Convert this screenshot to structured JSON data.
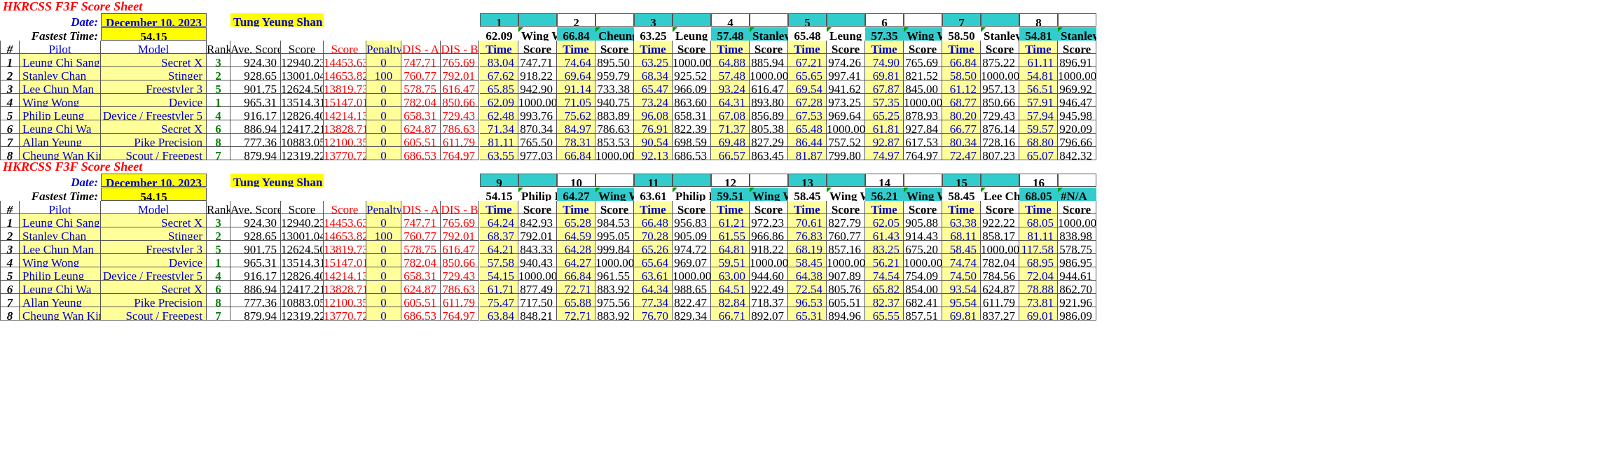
{
  "sheets": [
    {
      "title": "HKRCSS F3F Score Sheet",
      "date_label": "Date:",
      "date": "December 10, 2023",
      "location": "Tung Yeung Shan",
      "fastest_label": "Fastest Time:",
      "fastest": "54.15",
      "rounds": [
        {
          "num": "1",
          "fast_time": "62.09",
          "fast_pilot": "Wing Wong"
        },
        {
          "num": "2",
          "fast_time": "66.84",
          "fast_pilot": "Cheung Wan Kin"
        },
        {
          "num": "3",
          "fast_time": "63.25",
          "fast_pilot": "Leung Chi Sang"
        },
        {
          "num": "4",
          "fast_time": "57.48",
          "fast_pilot": "Stanley Chan"
        },
        {
          "num": "5",
          "fast_time": "65.48",
          "fast_pilot": "Leung Chi Wa"
        },
        {
          "num": "6",
          "fast_time": "57.35",
          "fast_pilot": "Wing Wong"
        },
        {
          "num": "7",
          "fast_time": "58.50",
          "fast_pilot": "Stanley Chan"
        },
        {
          "num": "8",
          "fast_time": "54.81",
          "fast_pilot": "Stanley Chan"
        }
      ],
      "rows": [
        {
          "n": "1",
          "pilot": "Leung Chi Sang",
          "model": "Secret X",
          "rank": "3",
          "ave": "924.30",
          "score": "12940.23",
          "score_red": "14453.63",
          "penalty": "0",
          "dis_a": "747.71",
          "dis_b": "765.69",
          "rounds": [
            [
              "83.04",
              "747.71"
            ],
            [
              "74.64",
              "895.50"
            ],
            [
              "63.25",
              "1000.00"
            ],
            [
              "64.88",
              "885.94"
            ],
            [
              "67.21",
              "974.26"
            ],
            [
              "74.90",
              "765.69"
            ],
            [
              "66.84",
              "875.22"
            ],
            [
              "61.11",
              "896.91"
            ]
          ]
        },
        {
          "n": "2",
          "pilot": "Stanley Chan",
          "model": "Stinger",
          "rank": "2",
          "ave": "928.65",
          "score": "13001.04",
          "score_red": "14653.82",
          "penalty": "100",
          "dis_a": "760.77",
          "dis_b": "792.01",
          "rounds": [
            [
              "67.62",
              "918.22"
            ],
            [
              "69.64",
              "959.79"
            ],
            [
              "68.34",
              "925.52"
            ],
            [
              "57.48",
              "1000.00"
            ],
            [
              "65.65",
              "997.41"
            ],
            [
              "69.81",
              "821.52"
            ],
            [
              "58.50",
              "1000.00"
            ],
            [
              "54.81",
              "1000.00"
            ]
          ]
        },
        {
          "n": "3",
          "pilot": "Lee Chun Man",
          "model": "Freestyler 3",
          "rank": "5",
          "ave": "901.75",
          "score": "12624.50",
          "score_red": "13819.73",
          "penalty": "0",
          "dis_a": "578.75",
          "dis_b": "616.47",
          "rounds": [
            [
              "65.85",
              "942.90"
            ],
            [
              "91.14",
              "733.38"
            ],
            [
              "65.47",
              "966.09"
            ],
            [
              "93.24",
              "616.47"
            ],
            [
              "69.54",
              "941.62"
            ],
            [
              "67.87",
              "845.00"
            ],
            [
              "61.12",
              "957.13"
            ],
            [
              "56.51",
              "969.92"
            ]
          ]
        },
        {
          "n": "4",
          "pilot": "Wing Wong",
          "model": "Device",
          "rank": "1",
          "ave": "965.31",
          "score": "13514.31",
          "score_red": "15147.01",
          "penalty": "0",
          "dis_a": "782.04",
          "dis_b": "850.66",
          "rounds": [
            [
              "62.09",
              "1000.00"
            ],
            [
              "71.05",
              "940.75"
            ],
            [
              "73.24",
              "863.60"
            ],
            [
              "64.31",
              "893.80"
            ],
            [
              "67.28",
              "973.25"
            ],
            [
              "57.35",
              "1000.00"
            ],
            [
              "68.77",
              "850.66"
            ],
            [
              "57.91",
              "946.47"
            ]
          ]
        },
        {
          "n": "5",
          "pilot": "Philip Leung",
          "model": "Device / Freestyler 5",
          "rank": "4",
          "ave": "916.17",
          "score": "12826.40",
          "score_red": "14214.13",
          "penalty": "0",
          "dis_a": "658.31",
          "dis_b": "729.43",
          "rounds": [
            [
              "62.48",
              "993.76"
            ],
            [
              "75.62",
              "883.89"
            ],
            [
              "96.08",
              "658.31"
            ],
            [
              "67.08",
              "856.89"
            ],
            [
              "67.53",
              "969.64"
            ],
            [
              "65.25",
              "878.93"
            ],
            [
              "80.20",
              "729.43"
            ],
            [
              "57.94",
              "945.98"
            ]
          ]
        },
        {
          "n": "6",
          "pilot": "Leung Chi Wa",
          "model": "Secret X",
          "rank": "6",
          "ave": "886.94",
          "score": "12417.21",
          "score_red": "13828.71",
          "penalty": "0",
          "dis_a": "624.87",
          "dis_b": "786.63",
          "rounds": [
            [
              "71.34",
              "870.34"
            ],
            [
              "84.97",
              "786.63"
            ],
            [
              "76.91",
              "822.39"
            ],
            [
              "71.37",
              "805.38"
            ],
            [
              "65.48",
              "1000.00"
            ],
            [
              "61.81",
              "927.84"
            ],
            [
              "66.77",
              "876.14"
            ],
            [
              "59.57",
              "920.09"
            ]
          ]
        },
        {
          "n": "7",
          "pilot": "Allan Yeung",
          "model": "Pike Precision",
          "rank": "8",
          "ave": "777.36",
          "score": "10883.05",
          "score_red": "12100.35",
          "penalty": "0",
          "dis_a": "605.51",
          "dis_b": "611.79",
          "rounds": [
            [
              "81.11",
              "765.50"
            ],
            [
              "78.31",
              "853.53"
            ],
            [
              "90.54",
              "698.59"
            ],
            [
              "69.48",
              "827.29"
            ],
            [
              "86.44",
              "757.52"
            ],
            [
              "92.87",
              "617.53"
            ],
            [
              "80.34",
              "728.16"
            ],
            [
              "68.80",
              "796.66"
            ]
          ]
        },
        {
          "n": "8",
          "pilot": "Cheung Wan Kin",
          "model": "Scout / Freepest",
          "rank": "7",
          "ave": "879.94",
          "score": "12319.22",
          "score_red": "13770.72",
          "penalty": "0",
          "dis_a": "686.53",
          "dis_b": "764.97",
          "rounds": [
            [
              "63.55",
              "977.03"
            ],
            [
              "66.84",
              "1000.00"
            ],
            [
              "92.13",
              "686.53"
            ],
            [
              "66.57",
              "863.45"
            ],
            [
              "81.87",
              "799.80"
            ],
            [
              "74.97",
              "764.97"
            ],
            [
              "72.47",
              "807.23"
            ],
            [
              "65.07",
              "842.32"
            ]
          ]
        }
      ]
    },
    {
      "title": "HKRCSS F3F Score Sheet",
      "date_label": "Date:",
      "date": "December 10, 2023",
      "location": "Tung Yeung Shan",
      "fastest_label": "Fastest Time:",
      "fastest": "54.15",
      "rounds": [
        {
          "num": "9",
          "fast_time": "54.15",
          "fast_pilot": "Philip Leung"
        },
        {
          "num": "10",
          "fast_time": "64.27",
          "fast_pilot": "Wing Wong"
        },
        {
          "num": "11",
          "fast_time": "63.61",
          "fast_pilot": "Philip Leung"
        },
        {
          "num": "12",
          "fast_time": "59.51",
          "fast_pilot": "Wing Wong"
        },
        {
          "num": "13",
          "fast_time": "58.45",
          "fast_pilot": "Wing Wong"
        },
        {
          "num": "14",
          "fast_time": "56.21",
          "fast_pilot": "Wing Wong"
        },
        {
          "num": "15",
          "fast_time": "58.45",
          "fast_pilot": "Lee Chun Man"
        },
        {
          "num": "16",
          "fast_time": "68.05",
          "fast_pilot": "#N/A"
        }
      ],
      "rows": [
        {
          "n": "1",
          "pilot": "Leung Chi Sang",
          "model": "Secret X",
          "rank": "3",
          "ave": "924.30",
          "score": "12940.23",
          "score_red": "14453.63",
          "penalty": "0",
          "dis_a": "747.71",
          "dis_b": "765.69",
          "rounds": [
            [
              "64.24",
              "842.93"
            ],
            [
              "65.28",
              "984.53"
            ],
            [
              "66.48",
              "956.83"
            ],
            [
              "61.21",
              "972.23"
            ],
            [
              "70.61",
              "827.79"
            ],
            [
              "62.05",
              "905.88"
            ],
            [
              "63.38",
              "922.22"
            ],
            [
              "68.05",
              "1000.00"
            ]
          ]
        },
        {
          "n": "2",
          "pilot": "Stanley Chan",
          "model": "Stinger",
          "rank": "2",
          "ave": "928.65",
          "score": "13001.04",
          "score_red": "14653.82",
          "penalty": "100",
          "dis_a": "760.77",
          "dis_b": "792.01",
          "rounds": [
            [
              "68.37",
              "792.01"
            ],
            [
              "64.59",
              "995.05"
            ],
            [
              "70.28",
              "905.09"
            ],
            [
              "61.55",
              "966.86"
            ],
            [
              "76.83",
              "760.77"
            ],
            [
              "61.43",
              "914.43"
            ],
            [
              "68.11",
              "858.17"
            ],
            [
              "81.11",
              "838.98"
            ]
          ]
        },
        {
          "n": "3",
          "pilot": "Lee Chun Man",
          "model": "Freestyler 3",
          "rank": "5",
          "ave": "901.75",
          "score": "12624.50",
          "score_red": "13819.73",
          "penalty": "0",
          "dis_a": "578.75",
          "dis_b": "616.47",
          "rounds": [
            [
              "64.21",
              "843.33"
            ],
            [
              "64.28",
              "999.84"
            ],
            [
              "65.26",
              "974.72"
            ],
            [
              "64.81",
              "918.22"
            ],
            [
              "68.19",
              "857.16"
            ],
            [
              "83.25",
              "675.20"
            ],
            [
              "58.45",
              "1000.00"
            ],
            [
              "117.58",
              "578.75"
            ]
          ]
        },
        {
          "n": "4",
          "pilot": "Wing Wong",
          "model": "Device",
          "rank": "1",
          "ave": "965.31",
          "score": "13514.31",
          "score_red": "15147.01",
          "penalty": "0",
          "dis_a": "782.04",
          "dis_b": "850.66",
          "rounds": [
            [
              "57.58",
              "940.43"
            ],
            [
              "64.27",
              "1000.00"
            ],
            [
              "65.64",
              "969.07"
            ],
            [
              "59.51",
              "1000.00"
            ],
            [
              "58.45",
              "1000.00"
            ],
            [
              "56.21",
              "1000.00"
            ],
            [
              "74.74",
              "782.04"
            ],
            [
              "68.95",
              "986.95"
            ]
          ]
        },
        {
          "n": "5",
          "pilot": "Philip Leung",
          "model": "Device / Freestyler 5",
          "rank": "4",
          "ave": "916.17",
          "score": "12826.40",
          "score_red": "14214.13",
          "penalty": "0",
          "dis_a": "658.31",
          "dis_b": "729.43",
          "rounds": [
            [
              "54.15",
              "1000.00"
            ],
            [
              "66.84",
              "961.55"
            ],
            [
              "63.61",
              "1000.00"
            ],
            [
              "63.00",
              "944.60"
            ],
            [
              "64.38",
              "907.89"
            ],
            [
              "74.54",
              "754.09"
            ],
            [
              "74.50",
              "784.56"
            ],
            [
              "72.04",
              "944.61"
            ]
          ]
        },
        {
          "n": "6",
          "pilot": "Leung Chi Wa",
          "model": "Secret X",
          "rank": "6",
          "ave": "886.94",
          "score": "12417.21",
          "score_red": "13828.71",
          "penalty": "0",
          "dis_a": "624.87",
          "dis_b": "786.63",
          "rounds": [
            [
              "61.71",
              "877.49"
            ],
            [
              "72.71",
              "883.92"
            ],
            [
              "64.34",
              "988.65"
            ],
            [
              "64.51",
              "922.49"
            ],
            [
              "72.54",
              "805.76"
            ],
            [
              "65.82",
              "854.00"
            ],
            [
              "93.54",
              "624.87"
            ],
            [
              "78.88",
              "862.70"
            ]
          ]
        },
        {
          "n": "7",
          "pilot": "Allan Yeung",
          "model": "Pike Precision",
          "rank": "8",
          "ave": "777.36",
          "score": "10883.05",
          "score_red": "12100.35",
          "penalty": "0",
          "dis_a": "605.51",
          "dis_b": "611.79",
          "rounds": [
            [
              "75.47",
              "717.50"
            ],
            [
              "65.88",
              "975.56"
            ],
            [
              "77.34",
              "822.47"
            ],
            [
              "82.84",
              "718.37"
            ],
            [
              "96.53",
              "605.51"
            ],
            [
              "82.37",
              "682.41"
            ],
            [
              "95.54",
              "611.79"
            ],
            [
              "73.81",
              "921.96"
            ]
          ]
        },
        {
          "n": "8",
          "pilot": "Cheung Wan Kin",
          "model": "Scout / Freepest",
          "rank": "7",
          "ave": "879.94",
          "score": "12319.22",
          "score_red": "13770.72",
          "penalty": "0",
          "dis_a": "686.53",
          "dis_b": "764.97",
          "rounds": [
            [
              "63.84",
              "848.21"
            ],
            [
              "72.71",
              "883.92"
            ],
            [
              "76.70",
              "829.34"
            ],
            [
              "66.71",
              "892.07"
            ],
            [
              "65.31",
              "894.96"
            ],
            [
              "65.55",
              "857.51"
            ],
            [
              "69.81",
              "837.27"
            ],
            [
              "69.01",
              "986.09"
            ]
          ]
        }
      ]
    }
  ],
  "headers": {
    "num": "#",
    "pilot": "Pilot",
    "model": "Model",
    "rank": "Rank",
    "ave": "Ave. Score",
    "score": "Score",
    "score_red": "Score",
    "penalty": "Penalty",
    "dis_a": "DIS - A",
    "dis_b": "DIS - B",
    "time": "Time",
    "rscore": "Score"
  },
  "colors": {
    "yellow": "#ffff00",
    "light_yellow": "#ffff99",
    "teal": "#33cccc",
    "blue": "#0000cc",
    "red": "#ff0000",
    "green": "#008000"
  }
}
